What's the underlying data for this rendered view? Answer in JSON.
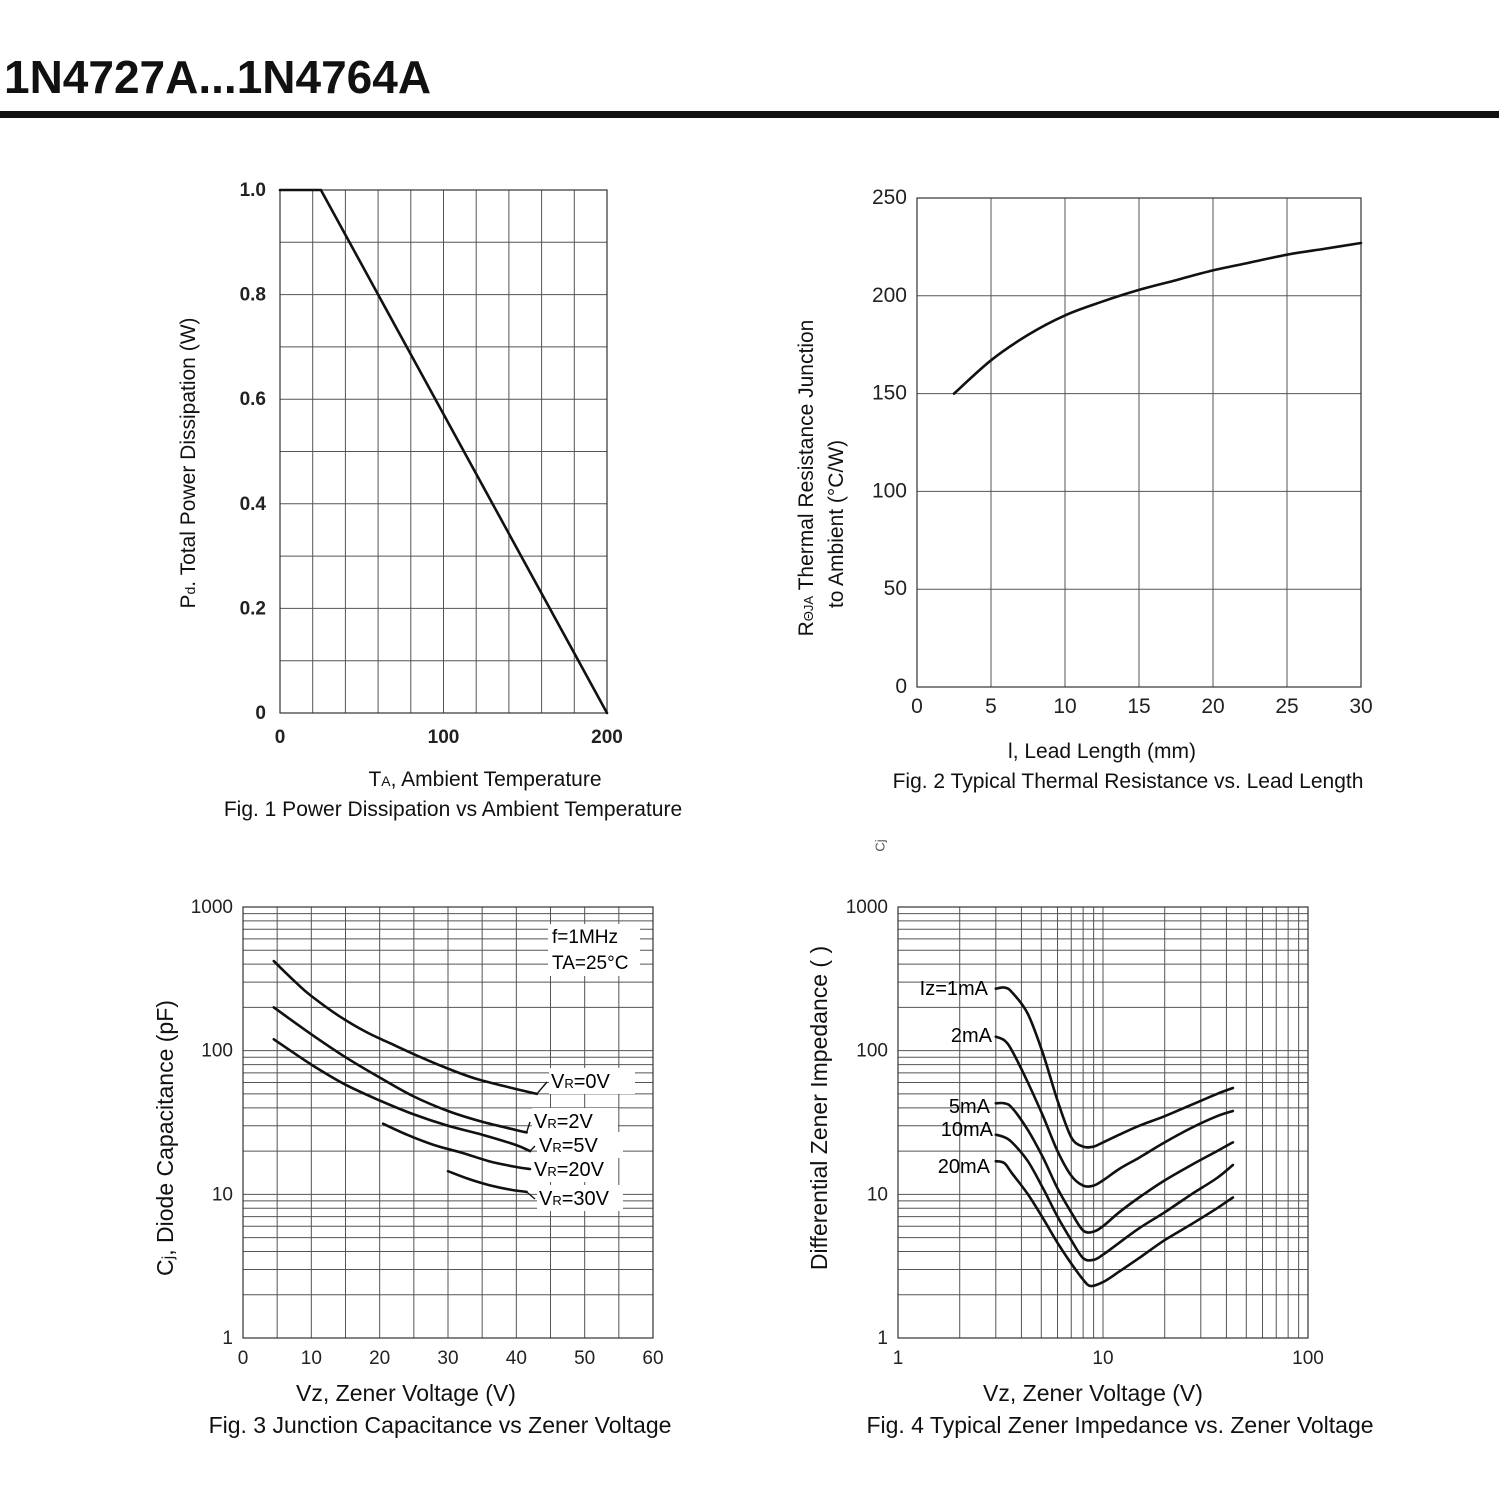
{
  "page": {
    "title": "1N4727A...1N4764A",
    "stray_mark": "Cj"
  },
  "chart_data": [
    {
      "id": "fig1",
      "type": "line",
      "caption": "Fig. 1 Power Dissipation vs Ambient Temperature",
      "xlabel": "TA, Ambient Temperature",
      "xlabel_main": "T",
      "xlabel_sub": "A",
      "xlabel_rest": ", Ambient Temperature",
      "ylabel": "Pd. Total Power Dissipation (W)",
      "ylabel_main": "P",
      "ylabel_sub": "d",
      "ylabel_rest": ". Total Power Dissipation (W)",
      "xlim": [
        0,
        200
      ],
      "ylim": [
        0,
        1.0
      ],
      "x_ticks": [
        {
          "value": 0,
          "label": "0"
        },
        {
          "value": 100,
          "label": "100"
        },
        {
          "value": 200,
          "label": "200"
        }
      ],
      "y_ticks": [
        {
          "value": 0,
          "label": "0"
        },
        {
          "value": 0.2,
          "label": "0.2"
        },
        {
          "value": 0.4,
          "label": "0.4"
        },
        {
          "value": 0.6,
          "label": "0.6"
        },
        {
          "value": 0.8,
          "label": "0.8"
        },
        {
          "value": 1.0,
          "label": "1.0"
        }
      ],
      "grid": {
        "x_step": 20,
        "y_step": 0.1
      },
      "series": [
        {
          "name": "Pd",
          "x": [
            0,
            25,
            200
          ],
          "y": [
            1.0,
            1.0,
            0
          ]
        }
      ]
    },
    {
      "id": "fig2",
      "type": "line",
      "caption": "Fig. 2 Typical Thermal Resistance vs. Lead Length",
      "xlabel": "l, Lead Length (mm)",
      "ylabel_line1": "RΘJA Thermal Resistance Junction",
      "ylabel_main": "R",
      "ylabel_sub": "ΘJA",
      "ylabel_rest": "  Thermal Resistance Junction",
      "ylabel_line2": "to Ambient (°C/W)",
      "xlim": [
        0,
        30
      ],
      "ylim": [
        0,
        250
      ],
      "x_ticks": [
        {
          "value": 0,
          "label": "0"
        },
        {
          "value": 5,
          "label": "5"
        },
        {
          "value": 10,
          "label": "10"
        },
        {
          "value": 15,
          "label": "15"
        },
        {
          "value": 20,
          "label": "20"
        },
        {
          "value": 25,
          "label": "25"
        },
        {
          "value": 30,
          "label": "30"
        }
      ],
      "y_ticks": [
        {
          "value": 0,
          "label": "0"
        },
        {
          "value": 50,
          "label": "50"
        },
        {
          "value": 100,
          "label": "100"
        },
        {
          "value": 150,
          "label": "150"
        },
        {
          "value": 200,
          "label": "200"
        },
        {
          "value": 250,
          "label": "250"
        }
      ],
      "grid": {
        "x_step": 5,
        "y_step": 50
      },
      "series": [
        {
          "name": "RthJA",
          "x": [
            2.5,
            5,
            7.5,
            10,
            12.5,
            15,
            17.5,
            20,
            22.5,
            25,
            27.5,
            30
          ],
          "y": [
            150,
            167,
            180,
            190,
            197,
            203,
            208,
            213,
            217,
            221,
            224,
            227
          ]
        }
      ]
    },
    {
      "id": "fig3",
      "type": "line",
      "caption": "Fig. 3 Junction Capacitance vs Zener Voltage",
      "xlabel": "Vz, Zener Voltage (V)",
      "ylabel": "Cj, Diode Capacitance (pF)",
      "ylabel_main": "C",
      "ylabel_sub": "j",
      "ylabel_rest": ", Diode Capacitance (pF)",
      "xlim": [
        0,
        60
      ],
      "ylim": [
        1,
        1000
      ],
      "yscale": "log",
      "annotation_line1": "f=1MHz",
      "annotation_line2": "TA=25°C",
      "x_ticks": [
        {
          "value": 0,
          "label": "0"
        },
        {
          "value": 10,
          "label": "10"
        },
        {
          "value": 20,
          "label": "20"
        },
        {
          "value": 30,
          "label": "30"
        },
        {
          "value": 40,
          "label": "40"
        },
        {
          "value": 50,
          "label": "50"
        },
        {
          "value": 60,
          "label": "60"
        }
      ],
      "y_ticks": [
        {
          "value": 1,
          "label": "1"
        },
        {
          "value": 10,
          "label": "10"
        },
        {
          "value": 100,
          "label": "100"
        },
        {
          "value": 1000,
          "label": "1000"
        }
      ],
      "grid": {
        "x_step": 5
      },
      "series": [
        {
          "name": "VR=0V",
          "label_main": "V",
          "label_sub": "R",
          "label_rest": "=0V",
          "x": [
            4.5,
            8,
            10,
            14,
            18,
            22,
            26,
            30,
            34,
            38,
            40,
            43
          ],
          "y": [
            420,
            290,
            240,
            175,
            135,
            110,
            90,
            75,
            64,
            57,
            54,
            50
          ]
        },
        {
          "name": "VR=2V",
          "label_main": "V",
          "label_sub": "R",
          "label_rest": "=2V",
          "x": [
            4.5,
            10,
            15,
            20,
            25,
            30,
            35,
            40,
            41.5
          ],
          "y": [
            200,
            130,
            90,
            65,
            48,
            38,
            32,
            28,
            27
          ]
        },
        {
          "name": "VR=5V",
          "label_main": "V",
          "label_sub": "R",
          "label_rest": "=5V",
          "x": [
            4.5,
            10,
            15,
            20,
            25,
            30,
            35,
            40,
            42
          ],
          "y": [
            120,
            80,
            58,
            45,
            36,
            30,
            26,
            22,
            20
          ]
        },
        {
          "name": "VR=20V",
          "label_main": "V",
          "label_sub": "R",
          "label_rest": "=20V",
          "x": [
            20.5,
            24,
            28,
            32,
            36,
            40,
            42
          ],
          "y": [
            31,
            26,
            22,
            19.5,
            17,
            15.5,
            15
          ]
        },
        {
          "name": "VR=30V",
          "label_main": "V",
          "label_sub": "R",
          "label_rest": "=30V",
          "x": [
            30,
            33,
            36,
            39,
            41.5
          ],
          "y": [
            14.5,
            12.8,
            11.6,
            10.8,
            10.4
          ]
        }
      ]
    },
    {
      "id": "fig4",
      "type": "line",
      "caption": "Fig. 4 Typical Zener Impedance vs. Zener Voltage",
      "xlabel": "Vz, Zener Voltage (V)",
      "ylabel": "Differential Zener Impedance ( )",
      "xlim": [
        1,
        100
      ],
      "ylim": [
        1,
        1000
      ],
      "xscale": "log",
      "yscale": "log",
      "x_ticks": [
        {
          "value": 1,
          "label": "1"
        },
        {
          "value": 10,
          "label": "10"
        },
        {
          "value": 100,
          "label": "100"
        }
      ],
      "y_ticks": [
        {
          "value": 1,
          "label": "1"
        },
        {
          "value": 10,
          "label": "10"
        },
        {
          "value": 100,
          "label": "100"
        },
        {
          "value": 1000,
          "label": "1000"
        }
      ],
      "series": [
        {
          "name": "Iz=1mA",
          "x": [
            3.0,
            3.3,
            3.6,
            4.3,
            5.1,
            6.0,
            7.0,
            8.0,
            9.0,
            10,
            12,
            15,
            20,
            27,
            36,
            43
          ],
          "y": [
            270,
            275,
            255,
            180,
            95,
            45,
            25,
            21.5,
            21.5,
            23,
            26,
            30,
            35,
            42,
            50,
            55
          ]
        },
        {
          "name": "2mA",
          "x": [
            3.0,
            3.3,
            3.6,
            4.3,
            5.1,
            6.0,
            7.0,
            8.0,
            9.0,
            10,
            12,
            15,
            20,
            27,
            36,
            43
          ],
          "y": [
            125,
            118,
            100,
            60,
            35,
            20,
            13.5,
            11.5,
            11.5,
            12.5,
            15,
            18,
            23,
            29,
            35,
            38
          ]
        },
        {
          "name": "5mA",
          "x": [
            3.0,
            3.3,
            3.6,
            4.3,
            5.1,
            6.0,
            7.0,
            8.0,
            9.0,
            10,
            12,
            15,
            20,
            27,
            36,
            43
          ],
          "y": [
            43,
            43,
            40,
            28,
            18,
            11,
            7.5,
            5.6,
            5.5,
            6.0,
            7.5,
            9.5,
            12.5,
            16,
            20,
            23
          ]
        },
        {
          "name": "10mA",
          "x": [
            3.0,
            3.3,
            3.6,
            4.3,
            5.1,
            6.0,
            7.0,
            8.0,
            9.0,
            10,
            12,
            15,
            20,
            27,
            36,
            43
          ],
          "y": [
            26,
            25,
            23,
            17,
            11,
            7.0,
            4.8,
            3.6,
            3.5,
            3.8,
            4.6,
            5.8,
            7.5,
            10,
            13,
            16
          ]
        },
        {
          "name": "20mA",
          "x": [
            3.0,
            3.3,
            3.6,
            4.3,
            5.1,
            6.0,
            7.0,
            8.0,
            8.7,
            10,
            12,
            15,
            20,
            27,
            36,
            43
          ],
          "y": [
            17,
            16.5,
            14,
            10,
            6.8,
            4.6,
            3.3,
            2.55,
            2.3,
            2.45,
            2.9,
            3.6,
            4.8,
            6.2,
            8.0,
            9.5
          ]
        }
      ]
    }
  ]
}
